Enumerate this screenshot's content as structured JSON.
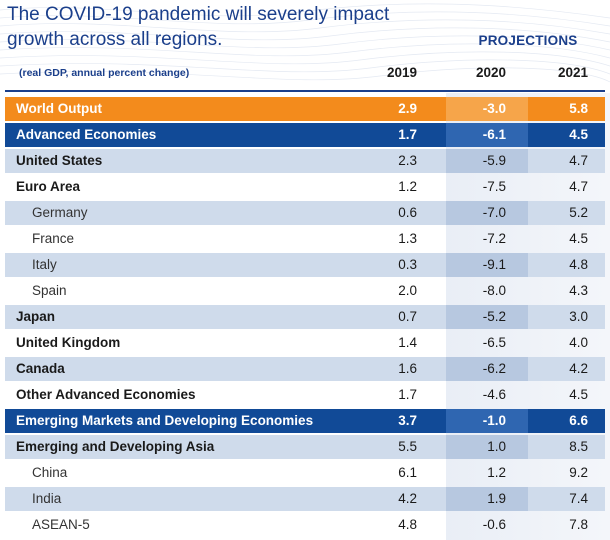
{
  "title": "The COVID-19 pandemic will severely impact growth across all regions.",
  "projections_label": "PROJECTIONS",
  "subtitle": "(real GDP, annual percent change)",
  "chart_data": {
    "type": "table",
    "columns": [
      "2019",
      "2020",
      "2021"
    ],
    "rows": [
      {
        "label": "World Output",
        "level": 0,
        "style": "orange",
        "values": [
          "2.9",
          "-3.0",
          "5.8"
        ]
      },
      {
        "label": "Advanced Economies",
        "level": 0,
        "style": "navy",
        "values": [
          "1.7",
          "-6.1",
          "4.5"
        ]
      },
      {
        "label": "United States",
        "level": 1,
        "style": "light",
        "values": [
          "2.3",
          "-5.9",
          "4.7"
        ]
      },
      {
        "label": "Euro Area",
        "level": 1,
        "style": "white",
        "values": [
          "1.2",
          "-7.5",
          "4.7"
        ]
      },
      {
        "label": "Germany",
        "level": 2,
        "style": "light",
        "values": [
          "0.6",
          "-7.0",
          "5.2"
        ]
      },
      {
        "label": "France",
        "level": 2,
        "style": "white",
        "values": [
          "1.3",
          "-7.2",
          "4.5"
        ]
      },
      {
        "label": "Italy",
        "level": 2,
        "style": "light",
        "values": [
          "0.3",
          "-9.1",
          "4.8"
        ]
      },
      {
        "label": "Spain",
        "level": 2,
        "style": "white",
        "values": [
          "2.0",
          "-8.0",
          "4.3"
        ]
      },
      {
        "label": "Japan",
        "level": 1,
        "style": "light",
        "values": [
          "0.7",
          "-5.2",
          "3.0"
        ]
      },
      {
        "label": "United Kingdom",
        "level": 1,
        "style": "white",
        "values": [
          "1.4",
          "-6.5",
          "4.0"
        ]
      },
      {
        "label": "Canada",
        "level": 1,
        "style": "light",
        "values": [
          "1.6",
          "-6.2",
          "4.2"
        ]
      },
      {
        "label": "Other Advanced Economies",
        "level": 1,
        "style": "white",
        "values": [
          "1.7",
          "-4.6",
          "4.5"
        ]
      },
      {
        "label": "Emerging Markets and Developing Economies",
        "level": 0,
        "style": "navy",
        "values": [
          "3.7",
          "-1.0",
          "6.6"
        ]
      },
      {
        "label": "Emerging and Developing Asia",
        "level": 1,
        "style": "light",
        "values": [
          "5.5",
          "1.0",
          "8.5"
        ]
      },
      {
        "label": "China",
        "level": 2,
        "style": "white",
        "values": [
          "6.1",
          "1.2",
          "9.2"
        ]
      },
      {
        "label": "India",
        "level": 2,
        "style": "light",
        "values": [
          "4.2",
          "1.9",
          "7.4"
        ]
      },
      {
        "label": "ASEAN-5",
        "level": 2,
        "style": "white",
        "values": [
          "4.8",
          "-0.6",
          "7.8"
        ]
      }
    ]
  },
  "colors": {
    "title": "#1b3f8b",
    "orange_row": "#f38b1c",
    "navy_row": "#114a97",
    "light_row": "#cfdbeb"
  }
}
